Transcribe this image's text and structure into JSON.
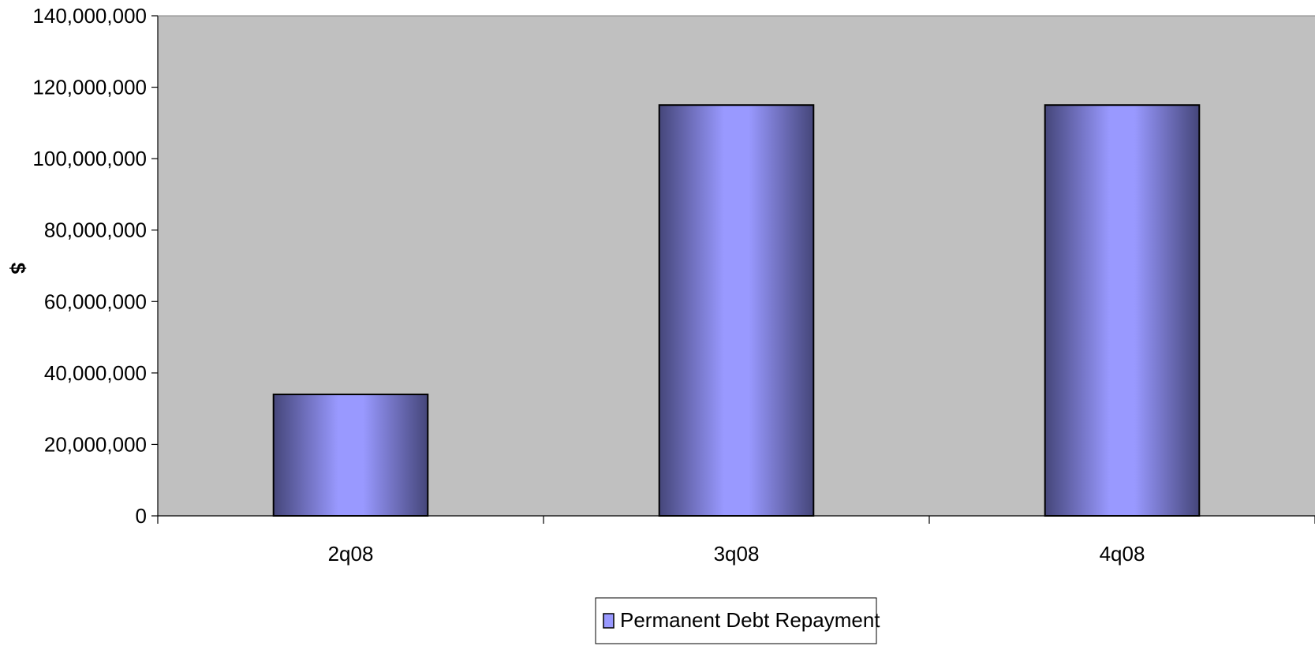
{
  "chart_data": {
    "type": "bar",
    "title": "",
    "xlabel": "",
    "ylabel": "$",
    "categories": [
      "2q08",
      "3q08",
      "4q08"
    ],
    "series": [
      {
        "name": "Permanent Debt Repayment",
        "values": [
          34000000,
          115000000,
          115000000
        ]
      }
    ],
    "ylim": [
      0,
      140000000
    ],
    "yticks": [
      0,
      20000000,
      40000000,
      60000000,
      80000000,
      100000000,
      120000000,
      140000000
    ],
    "ytick_labels": [
      "0",
      "20,000,000",
      "40,000,000",
      "60,000,000",
      "80,000,000",
      "100,000,000",
      "120,000,000",
      "140,000,000"
    ],
    "grid": false,
    "legend_position": "bottom",
    "colors": {
      "plot_background": "#c0c0c0",
      "bar_center": "#9999ff",
      "bar_edge": "#45467a",
      "bar_outline": "#000000"
    }
  }
}
